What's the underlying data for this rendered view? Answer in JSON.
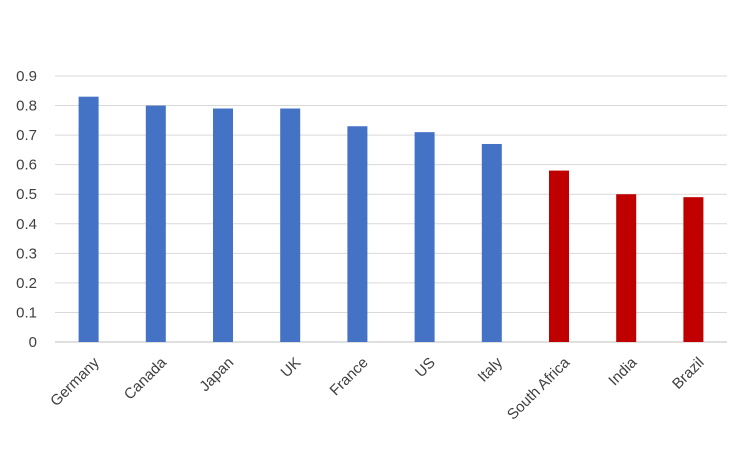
{
  "chart_data": {
    "type": "bar",
    "title": "",
    "xlabel": "",
    "ylabel": "",
    "categories": [
      "Germany",
      "Canada",
      "Japan",
      "UK",
      "France",
      "US",
      "Italy",
      "South Africa",
      "India",
      "Brazil"
    ],
    "values": [
      0.83,
      0.8,
      0.79,
      0.79,
      0.73,
      0.71,
      0.67,
      0.58,
      0.5,
      0.49
    ],
    "ylim": [
      0,
      0.9
    ],
    "yticks": [
      "0",
      "0.1",
      "0.2",
      "0.3",
      "0.4",
      "0.5",
      "0.6",
      "0.7",
      "0.8",
      "0.9"
    ],
    "grid": true,
    "legend": "none",
    "colors": {
      "default": "#4472c4",
      "highlight": "#c00000"
    },
    "bar_colors": [
      "#4472c4",
      "#4472c4",
      "#4472c4",
      "#4472c4",
      "#4472c4",
      "#4472c4",
      "#4472c4",
      "#c00000",
      "#c00000",
      "#c00000"
    ]
  }
}
